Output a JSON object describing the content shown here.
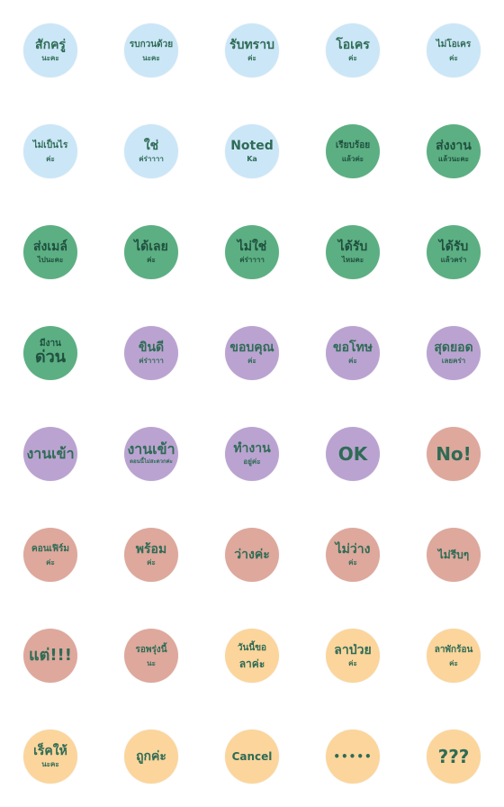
{
  "stickers": [
    {
      "line1": "สักครู่",
      "line2": "นะคะ",
      "color": "#cbe6f7"
    },
    {
      "line1": "รบกวนด้วย",
      "line2": "นะคะ",
      "color": "#cbe6f7"
    },
    {
      "line1": "รับทราบ",
      "line2": "ค่ะ",
      "color": "#cbe6f7"
    },
    {
      "line1": "โอเคร",
      "line2": "ค่ะ",
      "color": "#cbe6f7"
    },
    {
      "line1": "ไม่โอเคร",
      "line2": "ค่ะ",
      "color": "#cbe6f7"
    },
    {
      "line1": "ไม่เป็นไร",
      "line2": "ค่ะ",
      "color": "#cbe6f7"
    },
    {
      "line1": "ใช่",
      "line2": "ค่ร่าาาา",
      "color": "#cbe6f7"
    },
    {
      "line1": "Noted",
      "line2": "Ka",
      "color": "#cbe6f7"
    },
    {
      "line1": "เรียบร้อย",
      "line2": "แล้วค่ะ",
      "color": "#5caf82"
    },
    {
      "line1": "ส่งงาน",
      "line2": "แล้วนะคะ",
      "color": "#5caf82"
    },
    {
      "line1": "ส่งเมล์",
      "line2": "ไปนะคะ",
      "color": "#5caf82"
    },
    {
      "line1": "ได้เลย",
      "line2": "ค่ะ",
      "color": "#5caf82"
    },
    {
      "line1": "ไม่ใช่",
      "line2": "ค่ร่าาาา",
      "color": "#5caf82"
    },
    {
      "line1": "ได้รับ",
      "line2": "ไหมคะ",
      "color": "#5caf82"
    },
    {
      "line1": "ได้รับ",
      "line2": "แล้วคร่า",
      "color": "#5caf82"
    },
    {
      "line1": "มีงาน",
      "line2": "ด่วน",
      "color": "#5caf82"
    },
    {
      "line1": "ขินดี",
      "line2": "ค่ร่าาาา",
      "color": "#baa3d1"
    },
    {
      "line1": "ขอบคุณ",
      "line2": "ค่ะ",
      "color": "#baa3d1"
    },
    {
      "line1": "ขอโทษ",
      "line2": "ค่ะ",
      "color": "#baa3d1"
    },
    {
      "line1": "สุดยอด",
      "line2": "เลยคร่า",
      "color": "#baa3d1"
    },
    {
      "line1": "งานเข้า",
      "line2": "",
      "color": "#baa3d1"
    },
    {
      "line1": "งานเข้า",
      "line2": "ตอนนี้ไม่สะดวกค่ะ",
      "color": "#baa3d1"
    },
    {
      "line1": "ทำงาน",
      "line2": "อยู่ค่ะ",
      "color": "#baa3d1"
    },
    {
      "line1": "OK",
      "line2": "",
      "color": "#baa3d1"
    },
    {
      "line1": "No!",
      "line2": "",
      "color": "#dea89c"
    },
    {
      "line1": "คอนเฟิร์ม",
      "line2": "ค่ะ",
      "color": "#dea89c"
    },
    {
      "line1": "พร้อม",
      "line2": "ค่ะ",
      "color": "#dea89c"
    },
    {
      "line1": "ว่างค่ะ",
      "line2": "",
      "color": "#dea89c"
    },
    {
      "line1": "ไม่ว่าง",
      "line2": "ค่ะ",
      "color": "#dea89c"
    },
    {
      "line1": "ไม่รีบๆ",
      "line2": "",
      "color": "#dea89c"
    },
    {
      "line1": "แต่!!!",
      "line2": "",
      "color": "#dea89c"
    },
    {
      "line1": "รอพรุ่งนี้",
      "line2": "นะ",
      "color": "#dea89c"
    },
    {
      "line1": "วันนี้ขอ",
      "line2": "ลาค่ะ",
      "color": "#fbd59b"
    },
    {
      "line1": "ลาป่วย",
      "line2": "ค่ะ",
      "color": "#fbd59b"
    },
    {
      "line1": "ลาพักร้อน",
      "line2": "ค่ะ",
      "color": "#fbd59b"
    },
    {
      "line1": "เร็คให้",
      "line2": "นะคะ",
      "color": "#fbd59b"
    },
    {
      "line1": "ถูกค่ะ",
      "line2": "",
      "color": "#fbd59b"
    },
    {
      "line1": "Cancel",
      "line2": "",
      "color": "#fbd59b"
    },
    {
      "line1": "•••••",
      "line2": "",
      "color": "#fbd59b"
    },
    {
      "line1": "???",
      "line2": "",
      "color": "#fbd59b"
    }
  ]
}
